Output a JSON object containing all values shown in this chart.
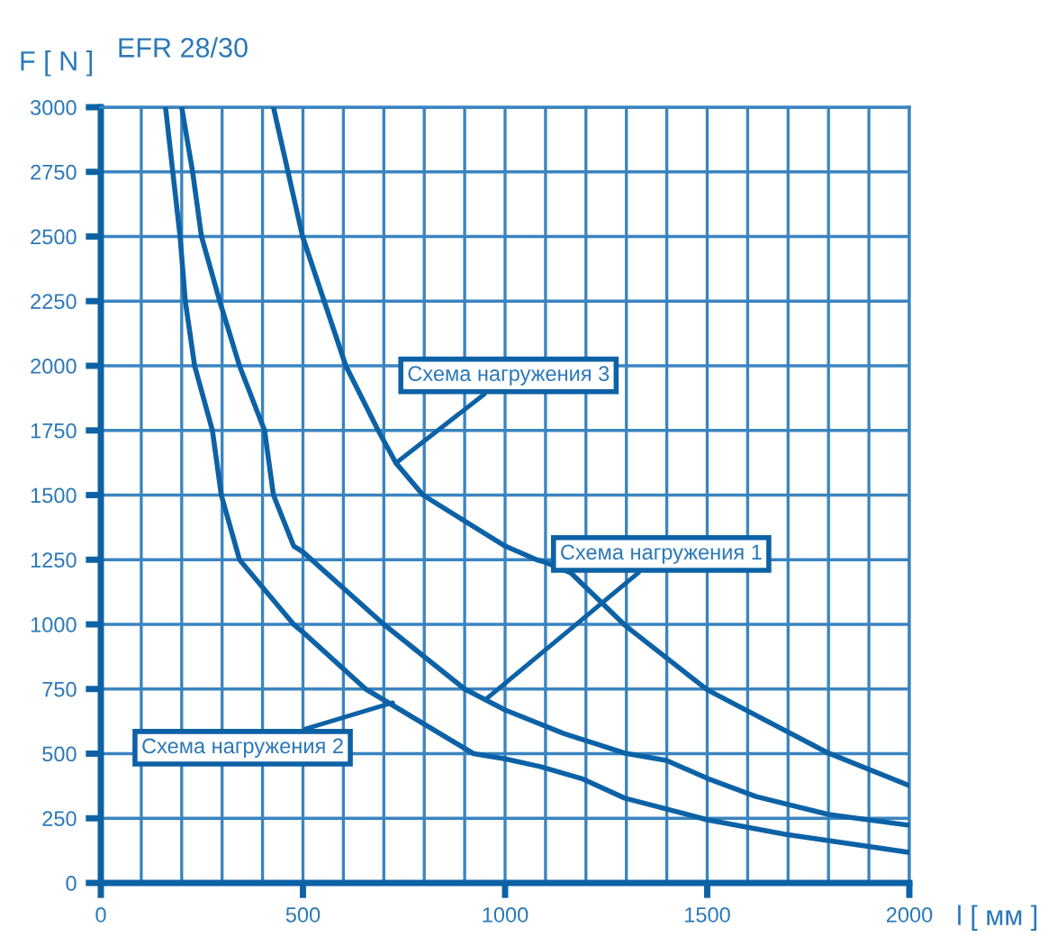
{
  "chart_data": {
    "type": "line",
    "title": "EFR 28/30",
    "xlabel": "l [ мм ]",
    "ylabel": "F [ N ]",
    "xlim": [
      0,
      2000
    ],
    "ylim": [
      0,
      3000
    ],
    "xticks": [
      0,
      {
        "value": 100,
        "label": null
      },
      {
        "value": 200,
        "label": null
      },
      {
        "value": 300,
        "label": null
      },
      {
        "value": 400,
        "label": null
      },
      500,
      {
        "value": 600,
        "label": null
      },
      {
        "value": 700,
        "label": null
      },
      {
        "value": 800,
        "label": null
      },
      {
        "value": 900,
        "label": null
      },
      1000,
      {
        "value": 1100,
        "label": null
      },
      {
        "value": 1200,
        "label": null
      },
      {
        "value": 1300,
        "label": null
      },
      {
        "value": 1400,
        "label": null
      },
      1500,
      {
        "value": 1600,
        "label": null
      },
      {
        "value": 1700,
        "label": null
      },
      {
        "value": 1800,
        "label": null
      },
      {
        "value": 1900,
        "label": null
      },
      2000
    ],
    "yticks": [
      0,
      250,
      500,
      750,
      1000,
      1250,
      1500,
      1750,
      2000,
      2250,
      2500,
      2750,
      3000
    ],
    "grid": true,
    "marker": "none",
    "line_style": "solid",
    "series": [
      {
        "color": "#0d62a6",
        "x": [
          160,
          196,
          209,
          232,
          276,
          298,
          343,
          477,
          500,
          655,
          922,
          1000,
          1087,
          1189,
          1296,
          1501,
          1693,
          2000
        ],
        "values": [
          3000,
          2500,
          2250,
          2000,
          1750,
          1500,
          1250,
          1000,
          970,
          750,
          500,
          480,
          450,
          404,
          328,
          244,
          188,
          118
        ]
      },
      {
        "color": "#0d62a6",
        "x": [
          200,
          227,
          249,
          294,
          343,
          405,
          427,
          477,
          500,
          700,
          900,
          1000,
          1145,
          1296,
          1399,
          1501,
          1621,
          1800,
          2000
        ],
        "values": [
          3000,
          2750,
          2500,
          2250,
          2000,
          1750,
          1500,
          1303,
          1280,
          1000,
          750,
          669,
          578,
          502,
          474,
          404,
          334,
          265,
          223
        ]
      },
      {
        "color": "#0d62a6",
        "x": [
          427,
          499,
          606,
          686,
          730,
          797,
          1000,
          1078,
          1100,
          1163,
          1296,
          1501,
          1800,
          2000
        ],
        "values": [
          3000,
          2500,
          2000,
          1750,
          1624,
          1500,
          1303,
          1250,
          1240,
          1199,
          997,
          746,
          502,
          376
        ]
      }
    ],
    "annotations": [
      {
        "text": "Схема нагружения 3",
        "x": 730,
        "y": 1624
      },
      {
        "text": "Схема нагружения 1",
        "x": 953,
        "y": 711
      },
      {
        "text": "Схема нагружения 2",
        "x": 722,
        "y": 697
      }
    ]
  }
}
